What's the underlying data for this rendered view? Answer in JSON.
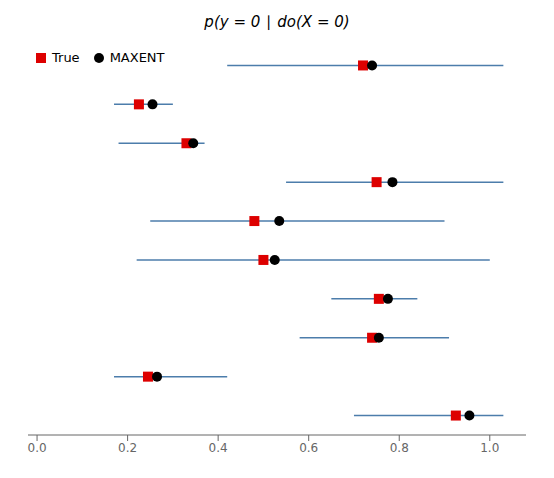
{
  "chart_data": {
    "type": "interval",
    "title": "p(y = 0 ∣ do(X = 0)",
    "xlim": [
      -0.02,
      1.08
    ],
    "xticks": [
      {
        "value": 0.0,
        "label": "0.0"
      },
      0.2,
      0.4,
      0.6,
      0.8,
      {
        "value": 1.0,
        "label": "1.0"
      }
    ],
    "tick_labels": "x",
    "grid": false,
    "legend": "upper left",
    "color": "#4c7dab",
    "ci_low": [
      0.42,
      0.17,
      0.18,
      0.55,
      0.25,
      0.22,
      0.65,
      0.58,
      0.17,
      0.7
    ],
    "ci_high": [
      1.03,
      0.3,
      0.37,
      1.03,
      0.9,
      1.0,
      0.84,
      0.91,
      0.42,
      1.03
    ],
    "series": [
      {
        "name": "True",
        "color": "#dd0000",
        "marker": "square",
        "values": [
          0.72,
          0.225,
          0.33,
          0.75,
          0.48,
          0.5,
          0.755,
          0.74,
          0.245,
          0.925
        ]
      },
      {
        "name": "MAXENT",
        "color": "#000000",
        "marker": "circle",
        "values": [
          0.74,
          0.255,
          0.345,
          0.785,
          0.535,
          0.525,
          0.775,
          0.755,
          0.265,
          0.955
        ]
      }
    ]
  }
}
